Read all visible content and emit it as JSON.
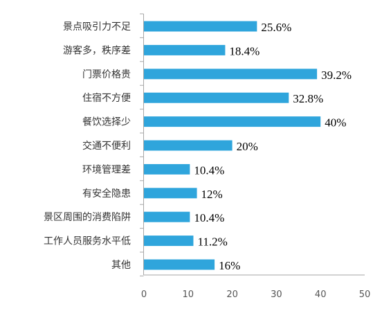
{
  "chart_data": {
    "type": "bar",
    "orientation": "horizontal",
    "categories": [
      "景点吸引力不足",
      "游客多，秩序差",
      "门票价格贵",
      "住宿不方便",
      "餐饮选择少",
      "交通不便利",
      "环境管理差",
      "有安全隐患",
      "景区周围的消费陷阱",
      "工作人员服务水平低",
      "其他"
    ],
    "values": [
      25.6,
      18.4,
      39.2,
      32.8,
      40,
      20,
      10.4,
      12,
      10.4,
      11.2,
      16
    ],
    "value_labels": [
      "25.6%",
      "18.4%",
      "39.2%",
      "32.8%",
      "40%",
      "20%",
      "10.4%",
      "12%",
      "10.4%",
      "11.2%",
      "16%"
    ],
    "x_ticks": [
      "0",
      "10",
      "20",
      "30",
      "40",
      "50"
    ],
    "xlim": [
      0,
      50
    ],
    "grid": false,
    "legend": "none",
    "bar_color": "#2FA5DC",
    "axis_color": "#A6A6A6"
  }
}
